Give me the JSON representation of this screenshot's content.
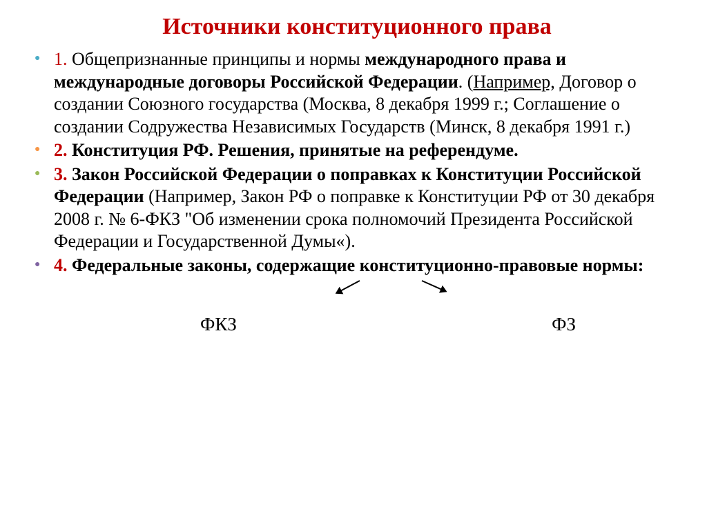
{
  "title": "Источники конституционного права",
  "title_color": "#c00000",
  "bullet_colors": [
    "#4bacc6",
    "#f79646",
    "#9bbb59",
    "#8064a2"
  ],
  "items": [
    {
      "num": "1.",
      "lead": " Общепризнанные принципы и нормы ",
      "bold1": "международного права и международные договоры Российской Федерации",
      "plain1": ". (",
      "under": "Например,",
      "plain2": " Договор о создании Союзного государства (Москва, 8 декабря 1999 г.; Соглашение о создании Содружества Независимых Государств (Минск, 8 декабря 1991 г.)"
    },
    {
      "num": "2.",
      "bold1": " Конституция РФ. Решения, принятые на референдуме."
    },
    {
      "num": "3.",
      "bold1": " Закон Российской Федерации о поправках к Конституции Российской Федерации ",
      "plain1": "(Например, Закон РФ о поправке к Конституции РФ от 30 декабря 2008 г. № 6-ФКЗ \"Об изменении срока полномочий Президента Российской Федерации и Государственной Думы«)."
    },
    {
      "num": "4.",
      "bold1": " Федеральные законы, содержащие конституционно-правовые нормы:"
    }
  ],
  "bottom": {
    "left": "ФКЗ",
    "right": "ФЗ"
  }
}
